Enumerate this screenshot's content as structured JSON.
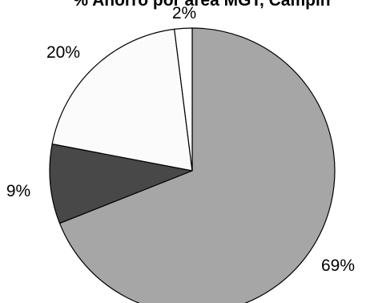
{
  "chart_data": {
    "type": "pie",
    "title": "% Ahorro por área MGT, Campin",
    "start": "12 o'clock",
    "direction": "clockwise",
    "slices": [
      {
        "value": 69,
        "label": "69%",
        "color": "#a6a6a6"
      },
      {
        "value": 9,
        "label": "9%",
        "color": "#484848"
      },
      {
        "value": 20,
        "label": "20%",
        "color": "#fbfbfb"
      },
      {
        "value": 2,
        "label": "2%",
        "color": "#ffffff"
      }
    ]
  }
}
